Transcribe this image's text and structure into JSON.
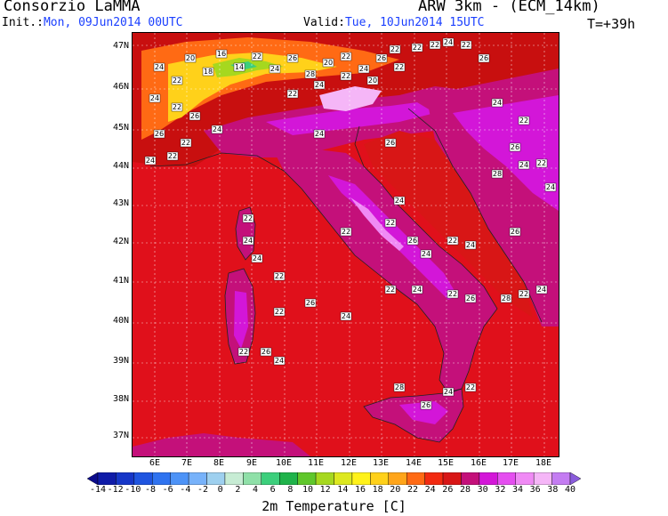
{
  "header": {
    "org": "Consorzio LaMMA",
    "init_prefix": "Init.:",
    "init_value": "Mon, 09Jun2014 00UTC",
    "model": "ARW 3km - (ECM_14km)",
    "valid_prefix": "Valid:",
    "valid_value": "Tue, 10Jun2014 15UTC",
    "lead": "T=+39h"
  },
  "map": {
    "lat_labels": [
      "47N",
      "46N",
      "45N",
      "44N",
      "43N",
      "42N",
      "41N",
      "40N",
      "39N",
      "38N",
      "37N"
    ],
    "lon_labels": [
      "6E",
      "7E",
      "8E",
      "9E",
      "10E",
      "11E",
      "12E",
      "13E",
      "14E",
      "15E",
      "16E",
      "17E",
      "18E"
    ],
    "station_values": [
      "24",
      "22",
      "20",
      "18",
      "16",
      "14",
      "22",
      "24",
      "26",
      "28",
      "20",
      "22",
      "24",
      "26",
      "22",
      "24",
      "22",
      "26",
      "24",
      "26",
      "22",
      "24",
      "22",
      "22",
      "24",
      "22",
      "20",
      "22",
      "22",
      "22",
      "24",
      "22",
      "26",
      "24",
      "22",
      "26",
      "28",
      "24",
      "22",
      "24",
      "24",
      "26",
      "24",
      "22",
      "22",
      "26",
      "24",
      "22",
      "24",
      "26",
      "22",
      "24",
      "28",
      "26",
      "22",
      "24",
      "22",
      "24",
      "26",
      "22",
      "24",
      "22",
      "24",
      "22",
      "24",
      "26",
      "22",
      "28",
      "26",
      "24",
      "22"
    ]
  },
  "colorbar": {
    "title": "2m Temperature [C]",
    "tick_labels": [
      "-14",
      "-12",
      "-10",
      "-8",
      "-6",
      "-4",
      "-2",
      "0",
      "2",
      "4",
      "6",
      "8",
      "10",
      "12",
      "14",
      "16",
      "18",
      "20",
      "22",
      "24",
      "26",
      "28",
      "30",
      "32",
      "34",
      "36",
      "38",
      "40"
    ],
    "colors": [
      "#0c0c8c",
      "#0f1ba8",
      "#1636c8",
      "#1f55e0",
      "#2f73f0",
      "#4d93f7",
      "#77b2fa",
      "#9ed0ef",
      "#c7ecd4",
      "#8fe0a8",
      "#3ccf7c",
      "#1fb34a",
      "#5fc72b",
      "#a6d81f",
      "#dde81f",
      "#fff21a",
      "#ffd11a",
      "#ffa51a",
      "#ff6a14",
      "#f22a10",
      "#d81616",
      "#c4107a",
      "#d316d8",
      "#e54ef0",
      "#f08af5",
      "#f5b6f7",
      "#c47cf2",
      "#8a5cdc"
    ]
  }
}
